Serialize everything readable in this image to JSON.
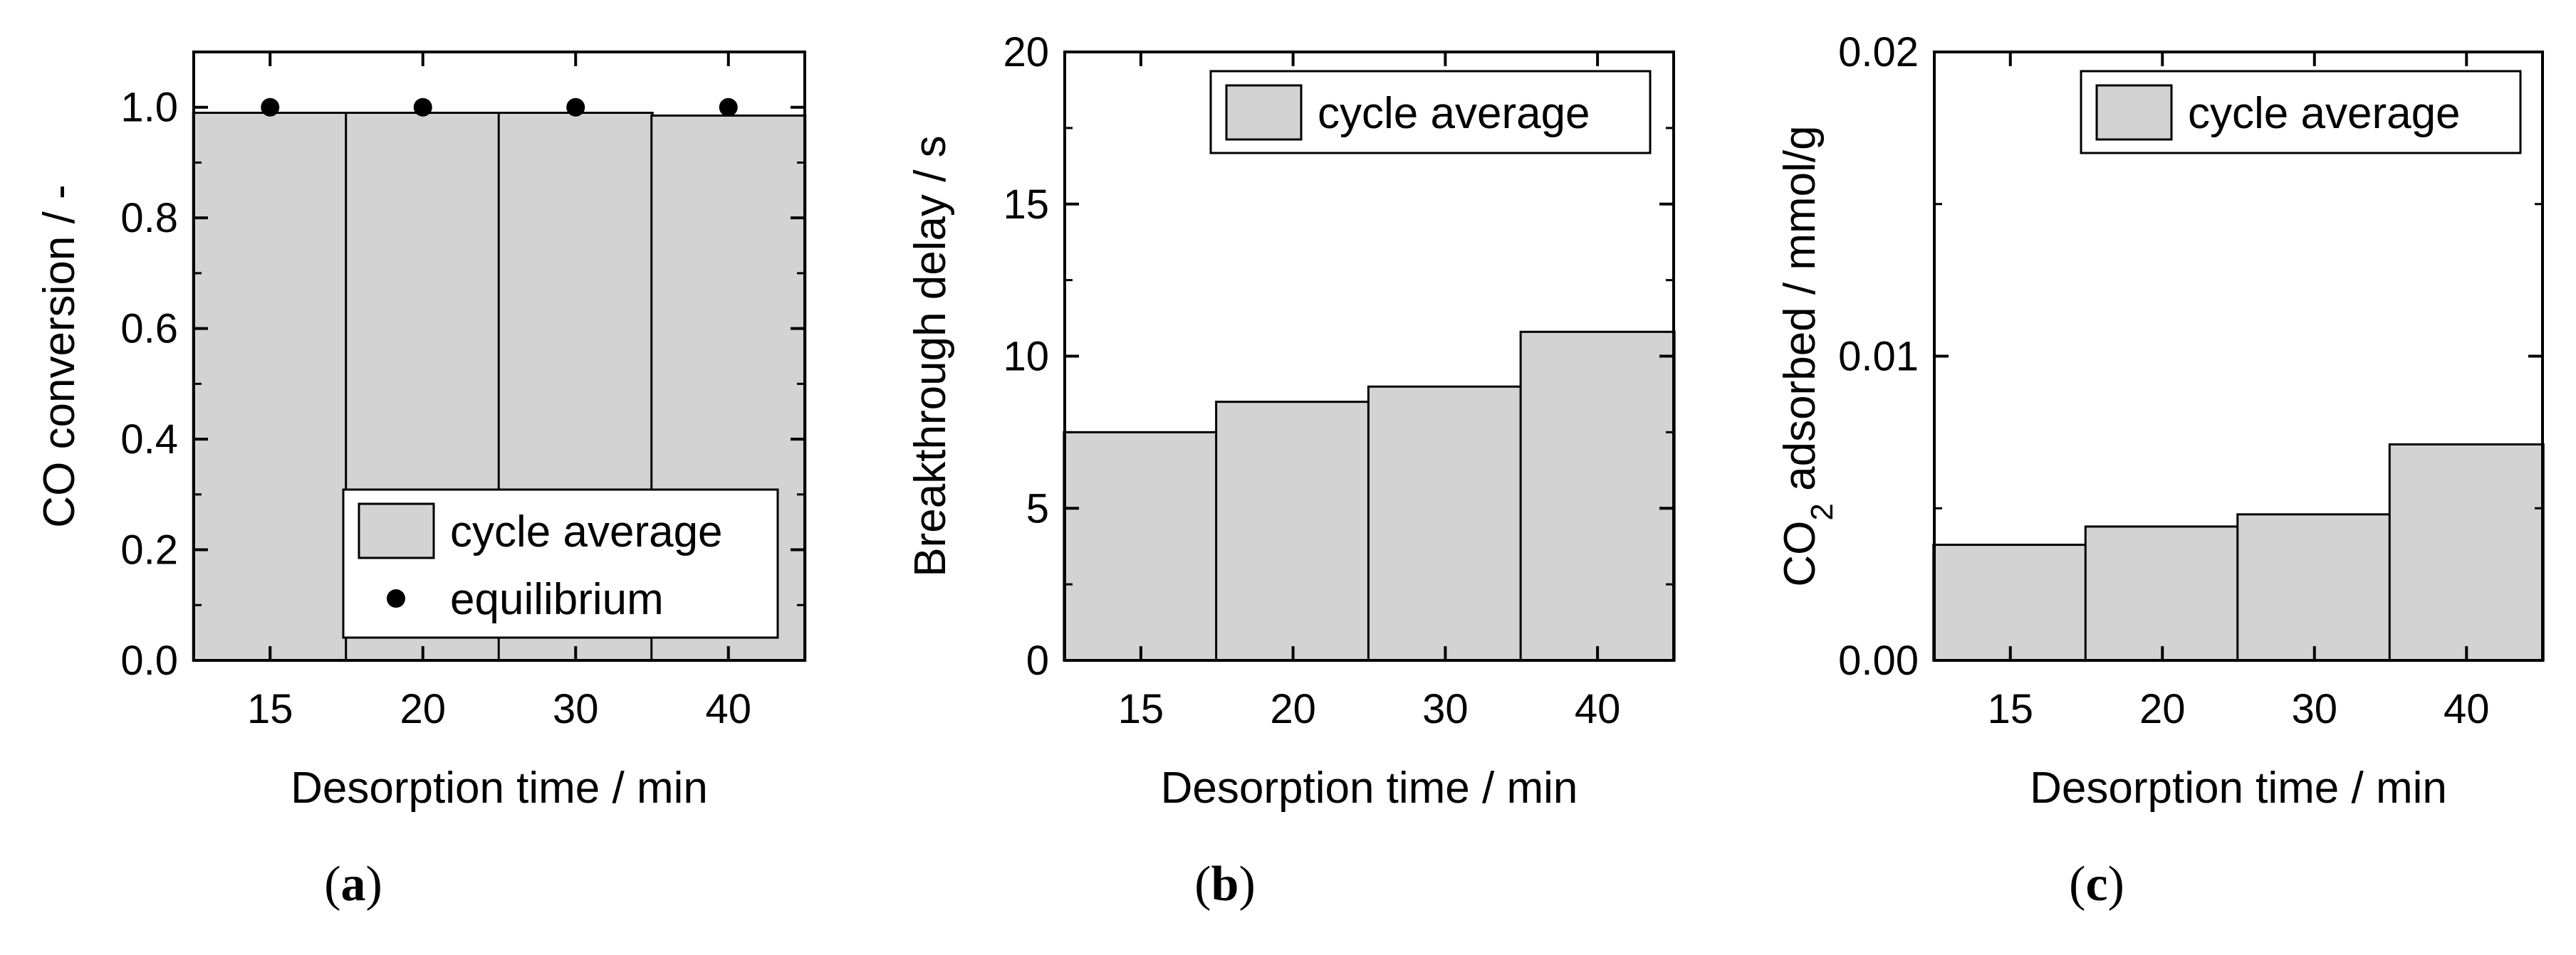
{
  "chart_data": [
    {
      "type": "bar",
      "panel": "a",
      "categories": [
        "15",
        "20",
        "30",
        "40"
      ],
      "series": [
        {
          "name": "cycle average",
          "kind": "bar",
          "values": [
            0.99,
            0.99,
            0.99,
            0.985
          ]
        },
        {
          "name": "equilibrium",
          "kind": "point",
          "values": [
            1.0,
            1.0,
            1.0,
            1.0
          ]
        }
      ],
      "xlabel": "Desorption time / min",
      "ylabel": "CO conversion / -",
      "ylim": [
        0.0,
        1.1
      ],
      "yticks": [
        "0.0",
        "0.2",
        "0.4",
        "0.6",
        "0.8",
        "1.0"
      ],
      "yticks_values": [
        0.0,
        0.2,
        0.4,
        0.6,
        0.8,
        1.0
      ],
      "legend": {
        "position": "bottom-right",
        "entries": [
          "cycle average",
          "equilibrium"
        ]
      },
      "label": "(a)",
      "label_letter": "a"
    },
    {
      "type": "bar",
      "panel": "b",
      "categories": [
        "15",
        "20",
        "30",
        "40"
      ],
      "series": [
        {
          "name": "cycle average",
          "kind": "bar",
          "values": [
            7.5,
            8.5,
            9.0,
            10.8
          ]
        }
      ],
      "xlabel": "Desorption time / min",
      "ylabel": "Breakthrough delay / s",
      "ylim": [
        0,
        20
      ],
      "yticks": [
        "0",
        "5",
        "10",
        "15",
        "20"
      ],
      "yticks_values": [
        0,
        5,
        10,
        15,
        20
      ],
      "legend": {
        "position": "top-right",
        "entries": [
          "cycle average"
        ]
      },
      "label": "(b)",
      "label_letter": "b"
    },
    {
      "type": "bar",
      "panel": "c",
      "categories": [
        "15",
        "20",
        "30",
        "40"
      ],
      "series": [
        {
          "name": "cycle average",
          "kind": "bar",
          "values": [
            0.0038,
            0.0044,
            0.0048,
            0.0071
          ]
        }
      ],
      "xlabel": "Desorption time / min",
      "ylabel": "CO2 adsorbed / mmol/g",
      "ylabel_parts": {
        "pre": "CO",
        "sub": "2",
        "post": " adsorbed / mmol/g"
      },
      "ylim": [
        0.0,
        0.02
      ],
      "yticks": [
        "0.00",
        "0.01",
        "0.02"
      ],
      "yticks_values": [
        0.0,
        0.01,
        0.02
      ],
      "legend": {
        "position": "top-right",
        "entries": [
          "cycle average"
        ]
      },
      "label": "(c)",
      "label_letter": "c"
    }
  ],
  "colors": {
    "bar_fill": "#d3d3d3",
    "stroke": "#000000",
    "point": "#000000"
  }
}
